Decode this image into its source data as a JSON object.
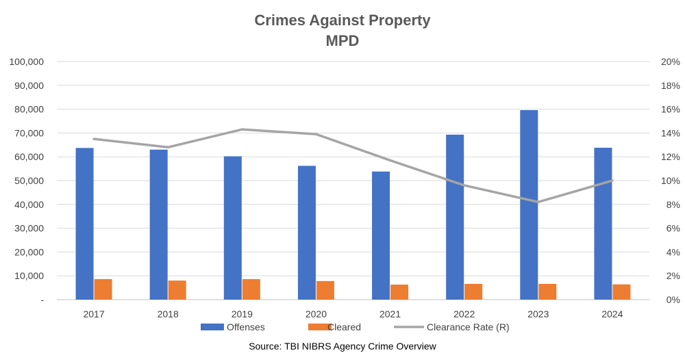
{
  "chart_data": {
    "type": "bar",
    "title": "Crimes Against Property",
    "subtitle": "MPD",
    "categories": [
      "2017",
      "2018",
      "2019",
      "2020",
      "2021",
      "2022",
      "2023",
      "2024"
    ],
    "series": [
      {
        "name": "Offenses",
        "type": "bar",
        "axis": "left",
        "color": "#4472C4",
        "values": [
          63700,
          63000,
          60200,
          56200,
          53800,
          69300,
          79600,
          63800
        ]
      },
      {
        "name": "Cleared",
        "type": "bar",
        "axis": "left",
        "color": "#ED7D31",
        "values": [
          8600,
          8000,
          8600,
          7800,
          6300,
          6600,
          6600,
          6400
        ]
      },
      {
        "name": "Clearance Rate (R)",
        "type": "line",
        "axis": "right",
        "color": "#A5A5A5",
        "values": [
          13.5,
          12.8,
          14.3,
          13.9,
          11.7,
          9.6,
          8.2,
          10.0
        ]
      }
    ],
    "y_left": {
      "lim": [
        0,
        100000
      ],
      "tick_labels": [
        "-",
        "10,000",
        "20,000",
        "30,000",
        "40,000",
        "50,000",
        "60,000",
        "70,000",
        "80,000",
        "90,000",
        "100,000"
      ]
    },
    "y_right": {
      "lim": [
        0,
        20
      ],
      "unit": "%",
      "tick_labels": [
        "0%",
        "2%",
        "4%",
        "6%",
        "8%",
        "10%",
        "12%",
        "14%",
        "16%",
        "18%",
        "20%"
      ]
    },
    "grid": true,
    "legend_position": "bottom",
    "source": "Source: TBI NIBRS Agency Crime Overview"
  }
}
